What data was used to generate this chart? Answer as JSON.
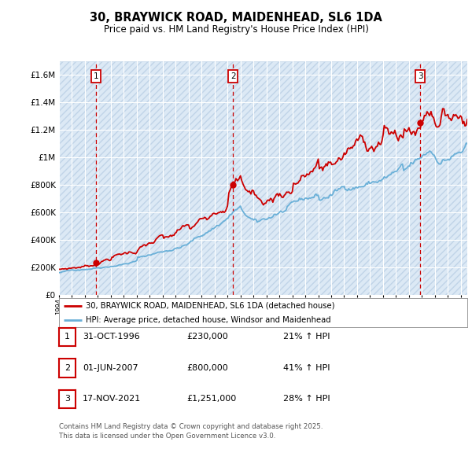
{
  "title": "30, BRAYWICK ROAD, MAIDENHEAD, SL6 1DA",
  "subtitle": "Price paid vs. HM Land Registry's House Price Index (HPI)",
  "red_label": "30, BRAYWICK ROAD, MAIDENHEAD, SL6 1DA (detached house)",
  "blue_label": "HPI: Average price, detached house, Windsor and Maidenhead",
  "transactions": [
    {
      "num": 1,
      "date": "31-OCT-1996",
      "price": 230000,
      "hpi_pct": "21%",
      "x_year": 1996.83
    },
    {
      "num": 2,
      "date": "01-JUN-2007",
      "price": 800000,
      "hpi_pct": "41%",
      "x_year": 2007.42
    },
    {
      "num": 3,
      "date": "17-NOV-2021",
      "price": 1251000,
      "hpi_pct": "28%",
      "x_year": 2021.88
    }
  ],
  "footnote_line1": "Contains HM Land Registry data © Crown copyright and database right 2025.",
  "footnote_line2": "This data is licensed under the Open Government Licence v3.0.",
  "ylim": [
    0,
    1700000
  ],
  "xlim_start": 1994.0,
  "xlim_end": 2025.5,
  "background_color": "#ffffff",
  "plot_bg_color": "#dce9f5",
  "grid_color": "#ffffff",
  "red_color": "#cc0000",
  "blue_color": "#6ab0d8"
}
